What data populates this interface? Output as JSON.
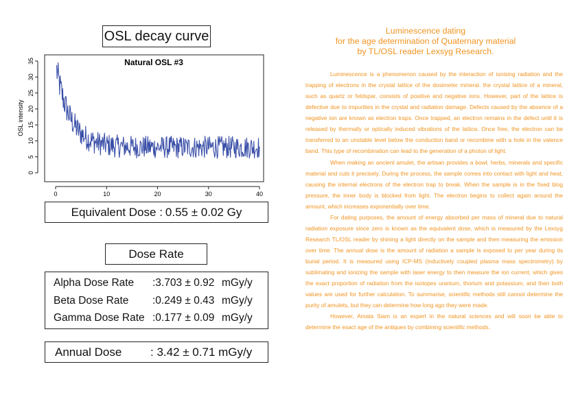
{
  "osl_panel": {
    "title": "OSL decay curve"
  },
  "chart_data": {
    "type": "line",
    "title": "Natural OSL #3",
    "xlabel": "",
    "ylabel": "OSL intensity",
    "xlim": [
      0,
      40
    ],
    "ylim": [
      0,
      35
    ],
    "xticks": [
      0,
      10,
      20,
      30,
      40
    ],
    "yticks": [
      0,
      5,
      10,
      15,
      20,
      25,
      30,
      35
    ],
    "x_start": 0.2,
    "x_end": 40,
    "x_step": 0.1,
    "decay_model": {
      "background": 8,
      "amplitude": 26,
      "tau": 2.8,
      "noise_amplitude": 3.5
    },
    "key_points": [
      [
        0.2,
        34
      ],
      [
        0.5,
        32
      ],
      [
        1,
        28
      ],
      [
        2,
        22
      ],
      [
        3,
        17
      ],
      [
        5,
        12
      ],
      [
        10,
        8
      ],
      [
        20,
        8
      ],
      [
        30,
        8
      ],
      [
        40,
        8
      ]
    ],
    "line_color": "#3a4fa8"
  },
  "equivalent_dose": {
    "label": "Equivalent Dose :",
    "value": "0.55 ± 0.02 Gy"
  },
  "dose_rate": {
    "title": "Dose Rate",
    "rows": [
      {
        "label": "Alpha Dose Rate",
        "value": ":3.703 ± 0.92",
        "unit": "mGy/y"
      },
      {
        "label": "Beta Dose Rate",
        "value": ":0.249 ± 0.43",
        "unit": "mGy/y"
      },
      {
        "label": "Gamma Dose Rate",
        "value": ":0.177 ± 0.09",
        "unit": "mGy/y"
      }
    ]
  },
  "annual_dose": {
    "label": "Annual Dose",
    "value": ": 3.42 ± 0.71 mGy/y"
  },
  "article": {
    "title_lines": [
      "Luminescence dating",
      "for the age determination of Quaternary material",
      "by TL/OSL reader Lexsyg Research."
    ],
    "paragraphs": [
      "Luminescence is a phenomenon caused by the interaction of ionising radiation and the trapping of electrons in the crystal lattice of the dosimeter mineral. the crystal lattice of a mineral, such as quartz or feldspar, consists of positive and negative ions. However, part of the lattice is defective due to impurities in the crystal and radiation damage. Defects caused by the absence of a negative ion are known as electron traps. Once trapped, an electron remains in the defect until it is released by thermally or optically induced vibrations of the lattice. Once free, the electron can be transferred to an unstable level below the conduction band or recombine with a hole in the valence band. This type of recombination can lead to the generation of a photon of light.",
      "When making an ancient amulet, the artisan provides a bowl, herbs, minerals and specific material and cuts it precisely. During the process, the sample comes into contact with light and heat, causing the internal electrons of the electron trap to break. When the sample is in the fixed blog pressure, the inner body is blocked from light. The electron begins to collect again around the amount, which increases exponentially over time.",
      "For dating purposes, the amount of energy absorbed per mass of mineral due to natural radiation exposure since zero is known as the equivalent dose, which is measured by the Lexsyg Research TL/OSL reader by shining a light directly on the sample and then measuring the emission over time. The annual dose is the amount of radiation a sample is exposed to per year during its burial period. It is measured using ICP-MS (inductively coupled plasma mass spectrometry) by sublimating and ionizing the sample with laser energy to then measure the ion current, which gives the exact proportion of radiation from the isotopes uranium, thorium and potassium, and then both values are used for further calculation. To summarise, scientific methods still cannot determine the purity of amulets, but they can determine how long ago they were made.",
      "However, Amata Siam is an expert in the natural sciences and will soon be able to determine the exact age of the antiques by combining scientific methods."
    ]
  }
}
